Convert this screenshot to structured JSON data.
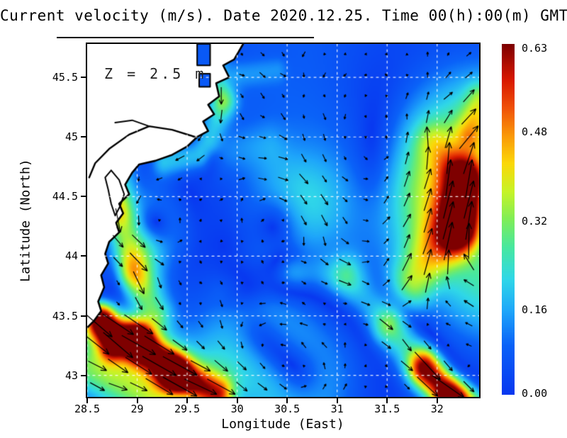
{
  "title": "Current velocity (m/s). Date 2020.12.25. Time 00(h):00(m) GMT",
  "annotation": "Z = 2.5 m",
  "axes": {
    "xlabel": "Longitude (East)",
    "ylabel": "Latitude (North)",
    "xlim": [
      28.5,
      32.42
    ],
    "ylim": [
      42.82,
      45.78
    ],
    "x_ticks": [
      {
        "v": 28.5,
        "label": "28.5"
      },
      {
        "v": 29.0,
        "label": "29"
      },
      {
        "v": 29.5,
        "label": "29.5"
      },
      {
        "v": 30.0,
        "label": "30"
      },
      {
        "v": 30.5,
        "label": "30.5"
      },
      {
        "v": 31.0,
        "label": "31"
      },
      {
        "v": 31.5,
        "label": "31.5"
      },
      {
        "v": 32.0,
        "label": "32"
      }
    ],
    "y_ticks": [
      {
        "v": 45.5,
        "label": "45.5"
      },
      {
        "v": 45.0,
        "label": "45"
      },
      {
        "v": 44.5,
        "label": "44.5"
      },
      {
        "v": 44.0,
        "label": "44"
      },
      {
        "v": 43.5,
        "label": "43.5"
      },
      {
        "v": 43.0,
        "label": "43"
      }
    ],
    "grid": true
  },
  "colorbar": {
    "min": 0.0,
    "max": 0.63,
    "labels": [
      {
        "v": 0.63,
        "label": "0.63"
      },
      {
        "v": 0.48,
        "label": "0.48"
      },
      {
        "v": 0.32,
        "label": "0.32"
      },
      {
        "v": 0.16,
        "label": "0.16"
      },
      {
        "v": 0.0,
        "label": "0.00"
      }
    ],
    "stops": [
      [
        0.0,
        "#0838F0"
      ],
      [
        0.14,
        "#0A62F8"
      ],
      [
        0.24,
        "#1FA8FA"
      ],
      [
        0.33,
        "#30D8E8"
      ],
      [
        0.42,
        "#48E8A0"
      ],
      [
        0.5,
        "#80EE58"
      ],
      [
        0.58,
        "#C8F428"
      ],
      [
        0.66,
        "#FCD808"
      ],
      [
        0.74,
        "#FA9808"
      ],
      [
        0.82,
        "#F05008"
      ],
      [
        0.9,
        "#D81800"
      ],
      [
        1.0,
        "#7E0000"
      ]
    ]
  },
  "chart_data": {
    "type": "heatmap",
    "field": "sea current speed (m/s) with direction vectors",
    "title": "Current velocity (m/s). Date 2020.12.25. Time 00(h):00(m) GMT",
    "depth_label": "Z = 2.5 m",
    "xlabel": "Longitude (East)",
    "ylabel": "Latitude (North)",
    "xlim": [
      28.5,
      32.42
    ],
    "ylim": [
      42.82,
      45.78
    ],
    "speed_range": [
      0.0,
      0.63
    ],
    "grid": true,
    "legend_position": "right-colorbar",
    "flow_features": {
      "base": [
        0.012,
        -0.018
      ],
      "noise_amp": 0.035,
      "jets": [
        [
          28.84,
          45.0,
          28.8,
          44.4,
          0.16,
          0.12
        ],
        [
          28.8,
          44.4,
          28.95,
          43.85,
          0.18,
          0.12
        ],
        [
          28.95,
          43.85,
          29.18,
          43.52,
          0.2,
          0.12
        ],
        [
          29.8,
          45.56,
          29.86,
          45.3,
          0.13,
          0.09
        ],
        [
          29.86,
          45.3,
          29.74,
          44.98,
          0.15,
          0.1
        ],
        [
          29.62,
          44.84,
          29.28,
          44.8,
          0.18,
          0.1
        ],
        [
          29.9,
          44.9,
          30.3,
          44.96,
          0.08,
          0.15
        ],
        [
          28.6,
          43.44,
          29.0,
          43.28,
          0.42,
          0.11
        ],
        [
          29.0,
          43.28,
          29.38,
          43.02,
          0.5,
          0.11
        ],
        [
          29.38,
          43.02,
          29.8,
          42.84,
          0.42,
          0.11
        ],
        [
          28.66,
          43.48,
          28.74,
          43.24,
          0.4,
          0.09
        ],
        [
          28.54,
          43.06,
          29.1,
          42.82,
          0.26,
          0.18
        ],
        [
          28.92,
          43.3,
          29.62,
          42.96,
          0.16,
          0.26
        ],
        [
          29.86,
          43.7,
          30.55,
          43.86,
          0.1,
          0.13
        ],
        [
          30.55,
          43.86,
          31.08,
          43.84,
          0.11,
          0.13
        ],
        [
          31.1,
          43.8,
          31.48,
          43.46,
          0.12,
          0.13
        ],
        [
          31.55,
          43.4,
          31.88,
          43.06,
          0.22,
          0.14
        ],
        [
          31.88,
          43.06,
          32.16,
          42.8,
          0.46,
          0.11
        ],
        [
          32.16,
          42.8,
          32.42,
          42.68,
          0.4,
          0.12
        ],
        [
          31.78,
          43.78,
          32.2,
          44.28,
          0.26,
          0.17
        ],
        [
          32.24,
          44.22,
          32.3,
          44.62,
          0.42,
          0.15
        ],
        [
          32.26,
          44.68,
          31.98,
          44.96,
          0.2,
          0.14
        ],
        [
          32.34,
          45.04,
          32.44,
          45.32,
          0.17,
          0.1
        ],
        [
          30.02,
          45.52,
          30.4,
          45.56,
          0.12,
          0.1
        ]
      ],
      "vortices": [
        [
          32.62,
          44.42,
          0.55,
          0.3,
          -1
        ],
        [
          30.62,
          43.0,
          0.33,
          0.13,
          1
        ],
        [
          30.45,
          44.32,
          0.3,
          0.1,
          -1
        ],
        [
          29.15,
          44.25,
          0.22,
          0.11,
          1
        ],
        [
          28.95,
          43.85,
          0.2,
          0.1,
          -1
        ],
        [
          31.55,
          44.6,
          0.45,
          0.07,
          1
        ],
        [
          31.3,
          45.35,
          0.85,
          0.06,
          1
        ],
        [
          30.15,
          43.35,
          0.3,
          0.1,
          1
        ]
      ]
    },
    "land": {
      "coast": [
        [
          30.06,
          45.78
        ],
        [
          29.97,
          45.65
        ],
        [
          29.86,
          45.6
        ],
        [
          29.92,
          45.5
        ],
        [
          29.79,
          45.45
        ],
        [
          29.82,
          45.34
        ],
        [
          29.71,
          45.27
        ],
        [
          29.77,
          45.19
        ],
        [
          29.66,
          45.13
        ],
        [
          29.71,
          45.05
        ],
        [
          29.6,
          45.0
        ],
        [
          29.5,
          44.92
        ],
        [
          29.35,
          44.85
        ],
        [
          29.18,
          44.8
        ],
        [
          29.02,
          44.77
        ],
        [
          28.95,
          44.7
        ],
        [
          28.88,
          44.6
        ],
        [
          28.92,
          44.52
        ],
        [
          28.82,
          44.44
        ],
        [
          28.86,
          44.36
        ],
        [
          28.79,
          44.28
        ],
        [
          28.82,
          44.2
        ],
        [
          28.72,
          44.12
        ],
        [
          28.68,
          44.02
        ],
        [
          28.71,
          43.94
        ],
        [
          28.64,
          43.84
        ],
        [
          28.67,
          43.74
        ],
        [
          28.61,
          43.62
        ],
        [
          28.64,
          43.54
        ],
        [
          28.57,
          43.46
        ],
        [
          28.5,
          43.4
        ]
      ],
      "river": [
        [
          29.58,
          45.0
        ],
        [
          29.35,
          45.06
        ],
        [
          29.12,
          45.09
        ],
        [
          28.92,
          45.02
        ],
        [
          28.72,
          44.9
        ],
        [
          28.58,
          44.78
        ],
        [
          28.52,
          44.66
        ]
      ],
      "river_branch": [
        [
          29.12,
          45.09
        ],
        [
          28.95,
          45.14
        ],
        [
          28.78,
          45.12
        ]
      ],
      "lagoon": [
        [
          28.74,
          44.72
        ],
        [
          28.82,
          44.64
        ],
        [
          28.87,
          44.52
        ],
        [
          28.83,
          44.42
        ],
        [
          28.78,
          44.34
        ],
        [
          28.74,
          44.44
        ],
        [
          28.71,
          44.56
        ],
        [
          28.68,
          44.66
        ],
        [
          28.74,
          44.72
        ]
      ],
      "lakes": [
        [
          29.6,
          45.6,
          29.73,
          45.78
        ],
        [
          29.62,
          45.42,
          29.73,
          45.53
        ]
      ]
    }
  }
}
